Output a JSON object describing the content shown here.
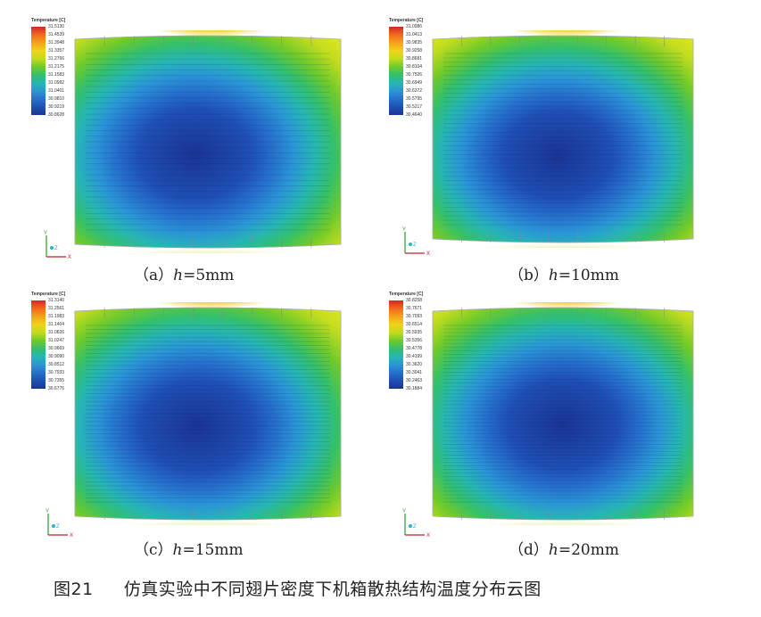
{
  "figure": {
    "number_label": "图21",
    "caption": "仿真实验中不同翅片密度下机箱散热结构温度分布云图"
  },
  "legend_title": "Temperature [C]",
  "axis_labels": {
    "y": "Y",
    "x": "X",
    "z": "Z"
  },
  "panels": [
    {
      "id": "a",
      "caption_prefix": "（a）",
      "caption_var": "h",
      "caption_value": "=5mm",
      "legend_values": [
        "31.5130",
        "31.4539",
        "31.3948",
        "31.3357",
        "31.2766",
        "31.2175",
        "31.1583",
        "31.0992",
        "31.0401",
        "30.9810",
        "30.9219",
        "30.8628"
      ],
      "field": {
        "core_rx": 0.36,
        "core_ry": 0.33,
        "core_cx": 0.45,
        "core_cy": 0.56,
        "fin_density": 0.35
      }
    },
    {
      "id": "b",
      "caption_prefix": "（b）",
      "caption_var": "h",
      "caption_value": "=10mm",
      "legend_values": [
        "31.0986",
        "31.0413",
        "30.9835",
        "30.9258",
        "30.8681",
        "30.8104",
        "30.7526",
        "30.6949",
        "30.6372",
        "30.5795",
        "30.5217",
        "30.4640"
      ],
      "field": {
        "core_rx": 0.4,
        "core_ry": 0.36,
        "core_cx": 0.48,
        "core_cy": 0.58,
        "fin_density": 0.6
      }
    },
    {
      "id": "c",
      "caption_prefix": "（c）",
      "caption_var": "h",
      "caption_value": "=15mm",
      "legend_values": [
        "31.3140",
        "31.2561",
        "31.1983",
        "31.1404",
        "31.0826",
        "31.0247",
        "30.9669",
        "30.9090",
        "30.8512",
        "30.7933",
        "30.7355",
        "30.6776"
      ],
      "field": {
        "core_rx": 0.38,
        "core_ry": 0.34,
        "core_cx": 0.46,
        "core_cy": 0.56,
        "fin_density": 0.8
      }
    },
    {
      "id": "d",
      "caption_prefix": "（d）",
      "caption_var": "h",
      "caption_value": "=20mm",
      "legend_values": [
        "30.8258",
        "30.7671",
        "30.7093",
        "30.6514",
        "30.5935",
        "30.5356",
        "30.4778",
        "30.4199",
        "30.3620",
        "30.3041",
        "30.2463",
        "30.1884"
      ],
      "field": {
        "core_rx": 0.42,
        "core_ry": 0.37,
        "core_cx": 0.5,
        "core_cy": 0.55,
        "fin_density": 1.0
      }
    }
  ],
  "colors": {
    "scale": [
      "#d42820",
      "#f06a1e",
      "#f4a21c",
      "#f0d21a",
      "#c2dc1e",
      "#6fca2a",
      "#34c06a",
      "#26b6b2",
      "#2a96d6",
      "#2672cc",
      "#1f4fb4",
      "#1a3494"
    ]
  }
}
